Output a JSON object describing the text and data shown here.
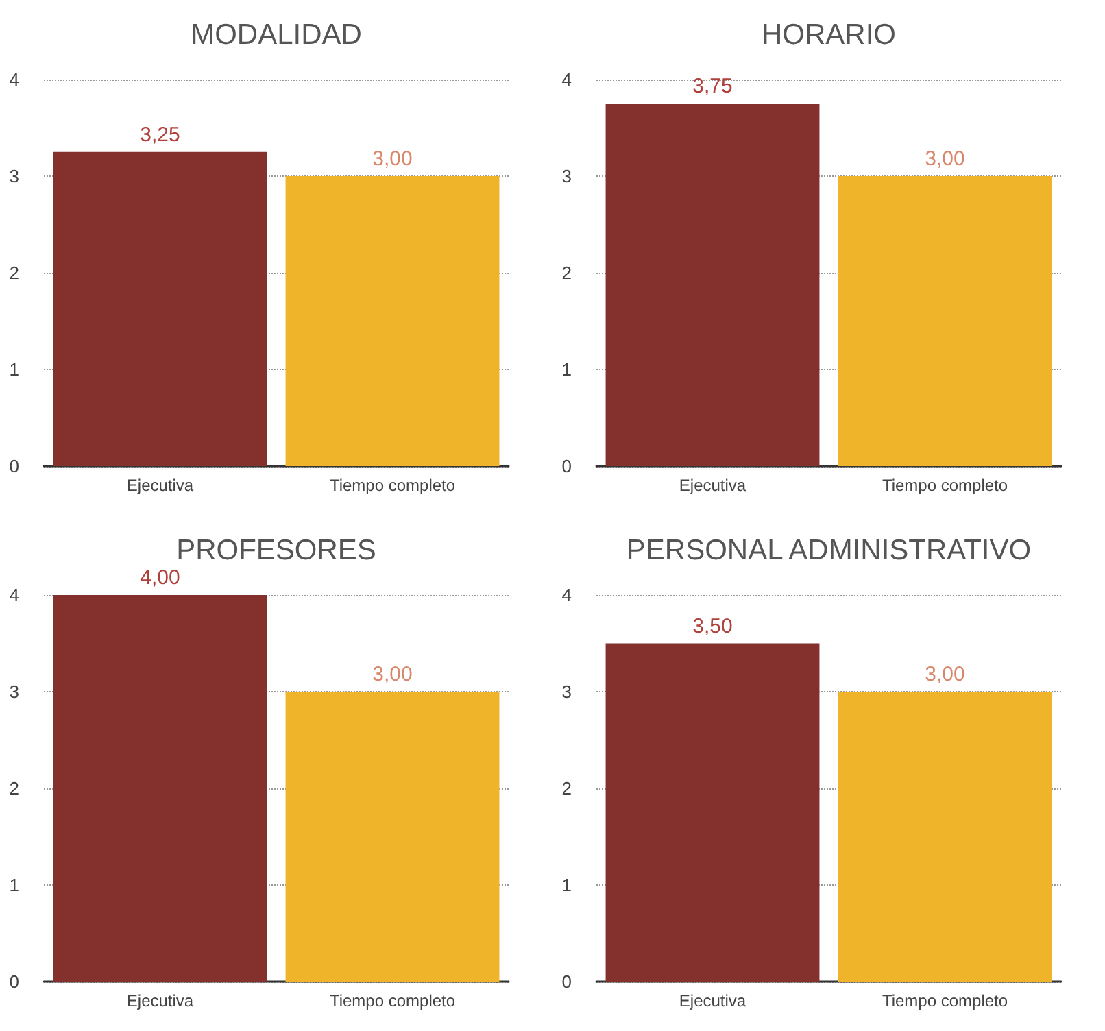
{
  "chart_data": [
    {
      "type": "bar",
      "title": "MODALIDAD",
      "categories": [
        "Ejecutiva",
        "Tiempo completo"
      ],
      "values": [
        3.25,
        3.0
      ],
      "value_labels": [
        "3,25",
        "3,00"
      ],
      "colors": [
        "#84302d",
        "#efb42a"
      ],
      "ylim": [
        0,
        4
      ],
      "yticks": [
        0,
        1,
        2,
        3,
        4
      ],
      "grid": "y"
    },
    {
      "type": "bar",
      "title": "HORARIO",
      "categories": [
        "Ejecutiva",
        "Tiempo completo"
      ],
      "values": [
        3.75,
        3.0
      ],
      "value_labels": [
        "3,75",
        "3,00"
      ],
      "colors": [
        "#84302d",
        "#efb42a"
      ],
      "ylim": [
        0,
        4
      ],
      "yticks": [
        0,
        1,
        2,
        3,
        4
      ],
      "grid": "y"
    },
    {
      "type": "bar",
      "title": "PROFESORES",
      "categories": [
        "Ejecutiva",
        "Tiempo completo"
      ],
      "values": [
        4.0,
        3.0
      ],
      "value_labels": [
        "4,00",
        "3,00"
      ],
      "colors": [
        "#84302d",
        "#efb42a"
      ],
      "ylim": [
        0,
        4
      ],
      "yticks": [
        0,
        1,
        2,
        3,
        4
      ],
      "grid": "y"
    },
    {
      "type": "bar",
      "title": "PERSONAL ADMINISTRATIVO",
      "categories": [
        "Ejecutiva",
        "Tiempo completo"
      ],
      "values": [
        3.5,
        3.0
      ],
      "value_labels": [
        "3,50",
        "3,00"
      ],
      "colors": [
        "#84302d",
        "#efb42a"
      ],
      "ylim": [
        0,
        4
      ],
      "yticks": [
        0,
        1,
        2,
        3,
        4
      ],
      "grid": "y"
    }
  ]
}
